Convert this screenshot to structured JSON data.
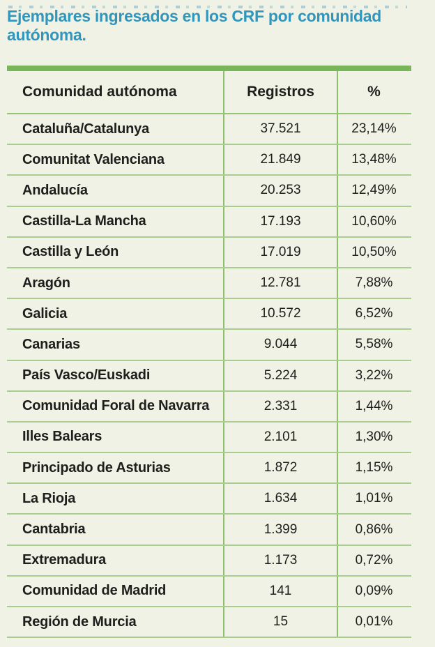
{
  "page": {
    "background_color": "#eff2e4",
    "text_color": "#1e1e1c"
  },
  "title": {
    "text": "Ejemplares ingresados en los CRF por comunidad autónoma.",
    "color": "#3096bd"
  },
  "table": {
    "accent_bar_color": "#7ab55c",
    "header_separator_color": "#95c577",
    "row_separator_color": "#a9cd8f",
    "column_line_color": "#8cc06e"
  },
  "chart_data": {
    "type": "table",
    "title": "Ejemplares ingresados en los CRF por comunidad autónoma.",
    "columns": [
      "Comunidad autónoma",
      "Registros",
      "%"
    ],
    "rows": [
      [
        "Cataluña/Catalunya",
        "37.521",
        "23,14%"
      ],
      [
        "Comunitat Valenciana",
        "21.849",
        "13,48%"
      ],
      [
        "Andalucía",
        "20.253",
        "12,49%"
      ],
      [
        "Castilla-La Mancha",
        "17.193",
        "10,60%"
      ],
      [
        "Castilla y León",
        "17.019",
        "10,50%"
      ],
      [
        "Aragón",
        "12.781",
        "7,88%"
      ],
      [
        "Galicia",
        "10.572",
        "6,52%"
      ],
      [
        "Canarias",
        "9.044",
        "5,58%"
      ],
      [
        "País Vasco/Euskadi",
        "5.224",
        "3,22%"
      ],
      [
        "Comunidad Foral de Navarra",
        "2.331",
        "1,44%"
      ],
      [
        "Illes Balears",
        "2.101",
        "1,30%"
      ],
      [
        "Principado de Asturias",
        "1.872",
        "1,15%"
      ],
      [
        "La Rioja",
        "1.634",
        "1,01%"
      ],
      [
        "Cantabria",
        "1.399",
        "0,86%"
      ],
      [
        "Extremadura",
        "1.173",
        "0,72%"
      ],
      [
        "Comunidad de Madrid",
        "141",
        "0,09%"
      ],
      [
        "Región de Murcia",
        "15",
        "0,01%"
      ]
    ]
  }
}
